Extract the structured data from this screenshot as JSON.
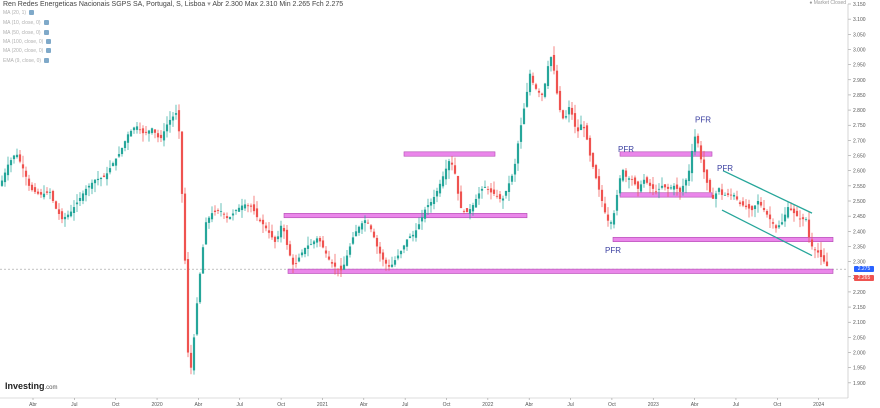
{
  "header": {
    "instrument": "Ren Redes Energeticas Nacionais SGPS SA, Portugal, S, Lisboa",
    "open": "Abr 2.300",
    "high": "Max 2.310",
    "low": "Min 2.265",
    "close": "Fch 2.275"
  },
  "indicators": [
    {
      "label": "MA (20, 1)"
    },
    {
      "label": "MA (10, close, 0)"
    },
    {
      "label": "MA (50, close, 0)"
    },
    {
      "label": "MA (100, close, 0)"
    },
    {
      "label": "MA (200, close, 0)"
    },
    {
      "label": "EMA (9, close, 0)"
    }
  ],
  "market_status": "Market Closed",
  "logo": {
    "name": "Investing",
    "suffix": ".com"
  },
  "colors": {
    "up": "#26a69a",
    "down": "#ef5350",
    "zone": "#e879e8",
    "channel": "#26a69a",
    "annotation": "#3a3fa0",
    "last_price": "#2962ff",
    "price_line": "#9e9e9e"
  },
  "chart_data": {
    "type": "candlestick",
    "title": "Ren Redes Energeticas Nacionais SGPS SA, Portugal, S, Lisboa",
    "ylim": [
      1.85,
      3.15
    ],
    "y_ticks": [
      "3.150",
      "3.100",
      "3.050",
      "3.000",
      "2.950",
      "2.900",
      "2.850",
      "2.800",
      "2.750",
      "2.700",
      "2.650",
      "2.600",
      "2.550",
      "2.500",
      "2.450",
      "2.400",
      "2.350",
      "2.300",
      "2.250",
      "2.200",
      "2.150",
      "2.100",
      "2.050",
      "2.000",
      "1.950",
      "1.900"
    ],
    "x_labels": [
      "Abr",
      "Jul",
      "Oct",
      "2020",
      "Abr",
      "Jul",
      "Oct",
      "2021",
      "Abr",
      "Jul",
      "Oct",
      "2022",
      "Abr",
      "Jul",
      "Oct",
      "2023",
      "Abr",
      "Jul",
      "Oct",
      "2024"
    ],
    "last_price": 2.275,
    "last_price_label": "2.275",
    "marked_price": 2.265,
    "marked_price_label": "2.265",
    "price_path": [
      [
        0,
        2.55
      ],
      [
        8,
        2.62
      ],
      [
        16,
        2.66
      ],
      [
        24,
        2.6
      ],
      [
        30,
        2.54
      ],
      [
        40,
        2.52
      ],
      [
        50,
        2.53
      ],
      [
        55,
        2.48
      ],
      [
        62,
        2.44
      ],
      [
        70,
        2.46
      ],
      [
        78,
        2.5
      ],
      [
        86,
        2.54
      ],
      [
        95,
        2.57
      ],
      [
        105,
        2.58
      ],
      [
        112,
        2.62
      ],
      [
        120,
        2.66
      ],
      [
        128,
        2.72
      ],
      [
        136,
        2.75
      ],
      [
        144,
        2.72
      ],
      [
        152,
        2.74
      ],
      [
        160,
        2.7
      ],
      [
        168,
        2.76
      ],
      [
        176,
        2.79
      ],
      [
        180,
        2.71
      ],
      [
        183,
        2.43
      ],
      [
        186,
        2.24
      ],
      [
        188,
        2.0
      ],
      [
        191,
        1.95
      ],
      [
        194,
        2.05
      ],
      [
        198,
        2.2
      ],
      [
        202,
        2.32
      ],
      [
        206,
        2.43
      ],
      [
        212,
        2.46
      ],
      [
        220,
        2.47
      ],
      [
        228,
        2.44
      ],
      [
        236,
        2.47
      ],
      [
        244,
        2.49
      ],
      [
        252,
        2.48
      ],
      [
        258,
        2.44
      ],
      [
        264,
        2.42
      ],
      [
        270,
        2.39
      ],
      [
        276,
        2.36
      ],
      [
        282,
        2.43
      ],
      [
        288,
        2.34
      ],
      [
        294,
        2.28
      ],
      [
        300,
        2.32
      ],
      [
        306,
        2.35
      ],
      [
        312,
        2.36
      ],
      [
        318,
        2.38
      ],
      [
        324,
        2.34
      ],
      [
        330,
        2.3
      ],
      [
        336,
        2.28
      ],
      [
        342,
        2.27
      ],
      [
        348,
        2.33
      ],
      [
        354,
        2.39
      ],
      [
        360,
        2.42
      ],
      [
        366,
        2.44
      ],
      [
        372,
        2.4
      ],
      [
        378,
        2.34
      ],
      [
        384,
        2.3
      ],
      [
        390,
        2.28
      ],
      [
        396,
        2.31
      ],
      [
        402,
        2.34
      ],
      [
        408,
        2.38
      ],
      [
        414,
        2.39
      ],
      [
        420,
        2.43
      ],
      [
        426,
        2.48
      ],
      [
        432,
        2.5
      ],
      [
        438,
        2.54
      ],
      [
        444,
        2.59
      ],
      [
        450,
        2.64
      ],
      [
        455,
        2.59
      ],
      [
        460,
        2.48
      ],
      [
        466,
        2.46
      ],
      [
        472,
        2.48
      ],
      [
        478,
        2.52
      ],
      [
        484,
        2.55
      ],
      [
        490,
        2.53
      ],
      [
        496,
        2.52
      ],
      [
        502,
        2.5
      ],
      [
        508,
        2.55
      ],
      [
        514,
        2.6
      ],
      [
        518,
        2.69
      ],
      [
        522,
        2.77
      ],
      [
        526,
        2.84
      ],
      [
        530,
        2.92
      ],
      [
        534,
        2.88
      ],
      [
        538,
        2.86
      ],
      [
        542,
        2.85
      ],
      [
        546,
        2.9
      ],
      [
        550,
        2.99
      ],
      [
        554,
        2.93
      ],
      [
        558,
        2.83
      ],
      [
        562,
        2.77
      ],
      [
        566,
        2.78
      ],
      [
        570,
        2.82
      ],
      [
        574,
        2.75
      ],
      [
        578,
        2.73
      ],
      [
        582,
        2.76
      ],
      [
        586,
        2.72
      ],
      [
        590,
        2.65
      ],
      [
        594,
        2.6
      ],
      [
        598,
        2.55
      ],
      [
        602,
        2.5
      ],
      [
        606,
        2.45
      ],
      [
        610,
        2.42
      ],
      [
        614,
        2.46
      ],
      [
        618,
        2.54
      ],
      [
        622,
        2.61
      ],
      [
        626,
        2.58
      ],
      [
        632,
        2.57
      ],
      [
        638,
        2.54
      ],
      [
        644,
        2.57
      ],
      [
        650,
        2.55
      ],
      [
        656,
        2.53
      ],
      [
        662,
        2.55
      ],
      [
        668,
        2.54
      ],
      [
        674,
        2.55
      ],
      [
        680,
        2.53
      ],
      [
        686,
        2.57
      ],
      [
        690,
        2.61
      ],
      [
        694,
        2.72
      ],
      [
        698,
        2.69
      ],
      [
        702,
        2.62
      ],
      [
        706,
        2.57
      ],
      [
        710,
        2.53
      ],
      [
        714,
        2.5
      ],
      [
        718,
        2.55
      ],
      [
        722,
        2.52
      ],
      [
        728,
        2.52
      ],
      [
        734,
        2.52
      ],
      [
        740,
        2.49
      ],
      [
        746,
        2.48
      ],
      [
        752,
        2.47
      ],
      [
        758,
        2.5
      ],
      [
        764,
        2.47
      ],
      [
        770,
        2.44
      ],
      [
        776,
        2.41
      ],
      [
        782,
        2.43
      ],
      [
        788,
        2.48
      ],
      [
        794,
        2.46
      ],
      [
        800,
        2.44
      ],
      [
        806,
        2.44
      ],
      [
        810,
        2.36
      ],
      [
        814,
        2.34
      ],
      [
        818,
        2.33
      ],
      [
        822,
        2.31
      ],
      [
        826,
        2.29
      ],
      [
        829,
        2.275
      ]
    ],
    "zones": [
      {
        "x1": 404,
        "x2": 495,
        "y": 2.655
      },
      {
        "x1": 284,
        "x2": 527,
        "y": 2.452
      },
      {
        "x1": 620,
        "x2": 712,
        "y": 2.655
      },
      {
        "x1": 620,
        "x2": 712,
        "y": 2.52
      },
      {
        "x1": 613,
        "x2": 833,
        "y": 2.373
      },
      {
        "x1": 288,
        "x2": 833,
        "y": 2.268
      }
    ],
    "channel": [
      {
        "x1": 723,
        "y1": 2.6,
        "x2": 812,
        "y2": 2.46
      },
      {
        "x1": 722,
        "y1": 2.47,
        "x2": 812,
        "y2": 2.32
      }
    ],
    "annotations": [
      {
        "text": "PFR",
        "x": 626,
        "y": 2.662
      },
      {
        "text": "PFR",
        "x": 613,
        "y": 2.329
      },
      {
        "text": "PFR",
        "x": 703,
        "y": 2.759
      },
      {
        "text": "PFR",
        "x": 725,
        "y": 2.599
      }
    ]
  }
}
